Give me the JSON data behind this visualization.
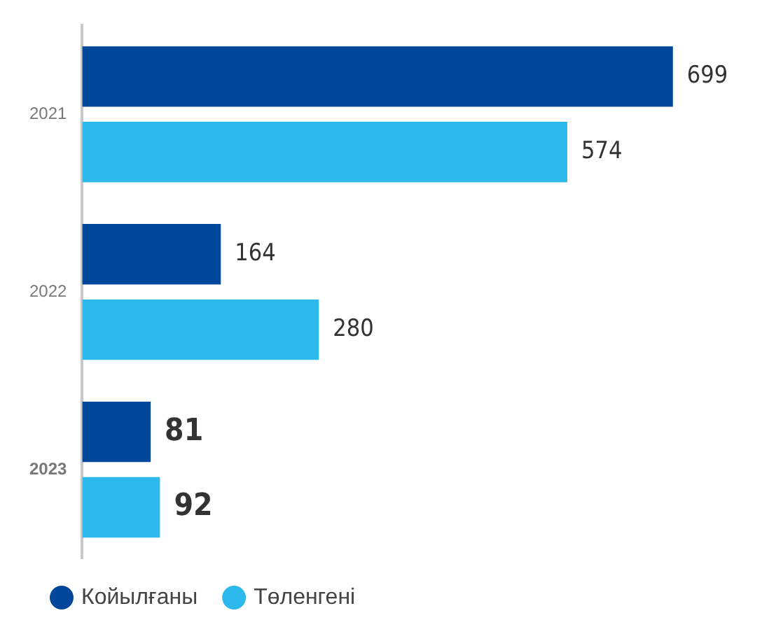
{
  "chart_data": {
    "type": "bar",
    "orientation": "horizontal",
    "categories": [
      "2021",
      "2022",
      "2023"
    ],
    "series": [
      {
        "name": "Койылғаны",
        "color": "#00469a",
        "values": [
          699,
          164,
          81
        ]
      },
      {
        "name": "Төленгені",
        "color": "#2db9eb",
        "values": [
          574,
          280,
          92
        ]
      }
    ],
    "data_labels": true,
    "legend": "bottom left"
  }
}
